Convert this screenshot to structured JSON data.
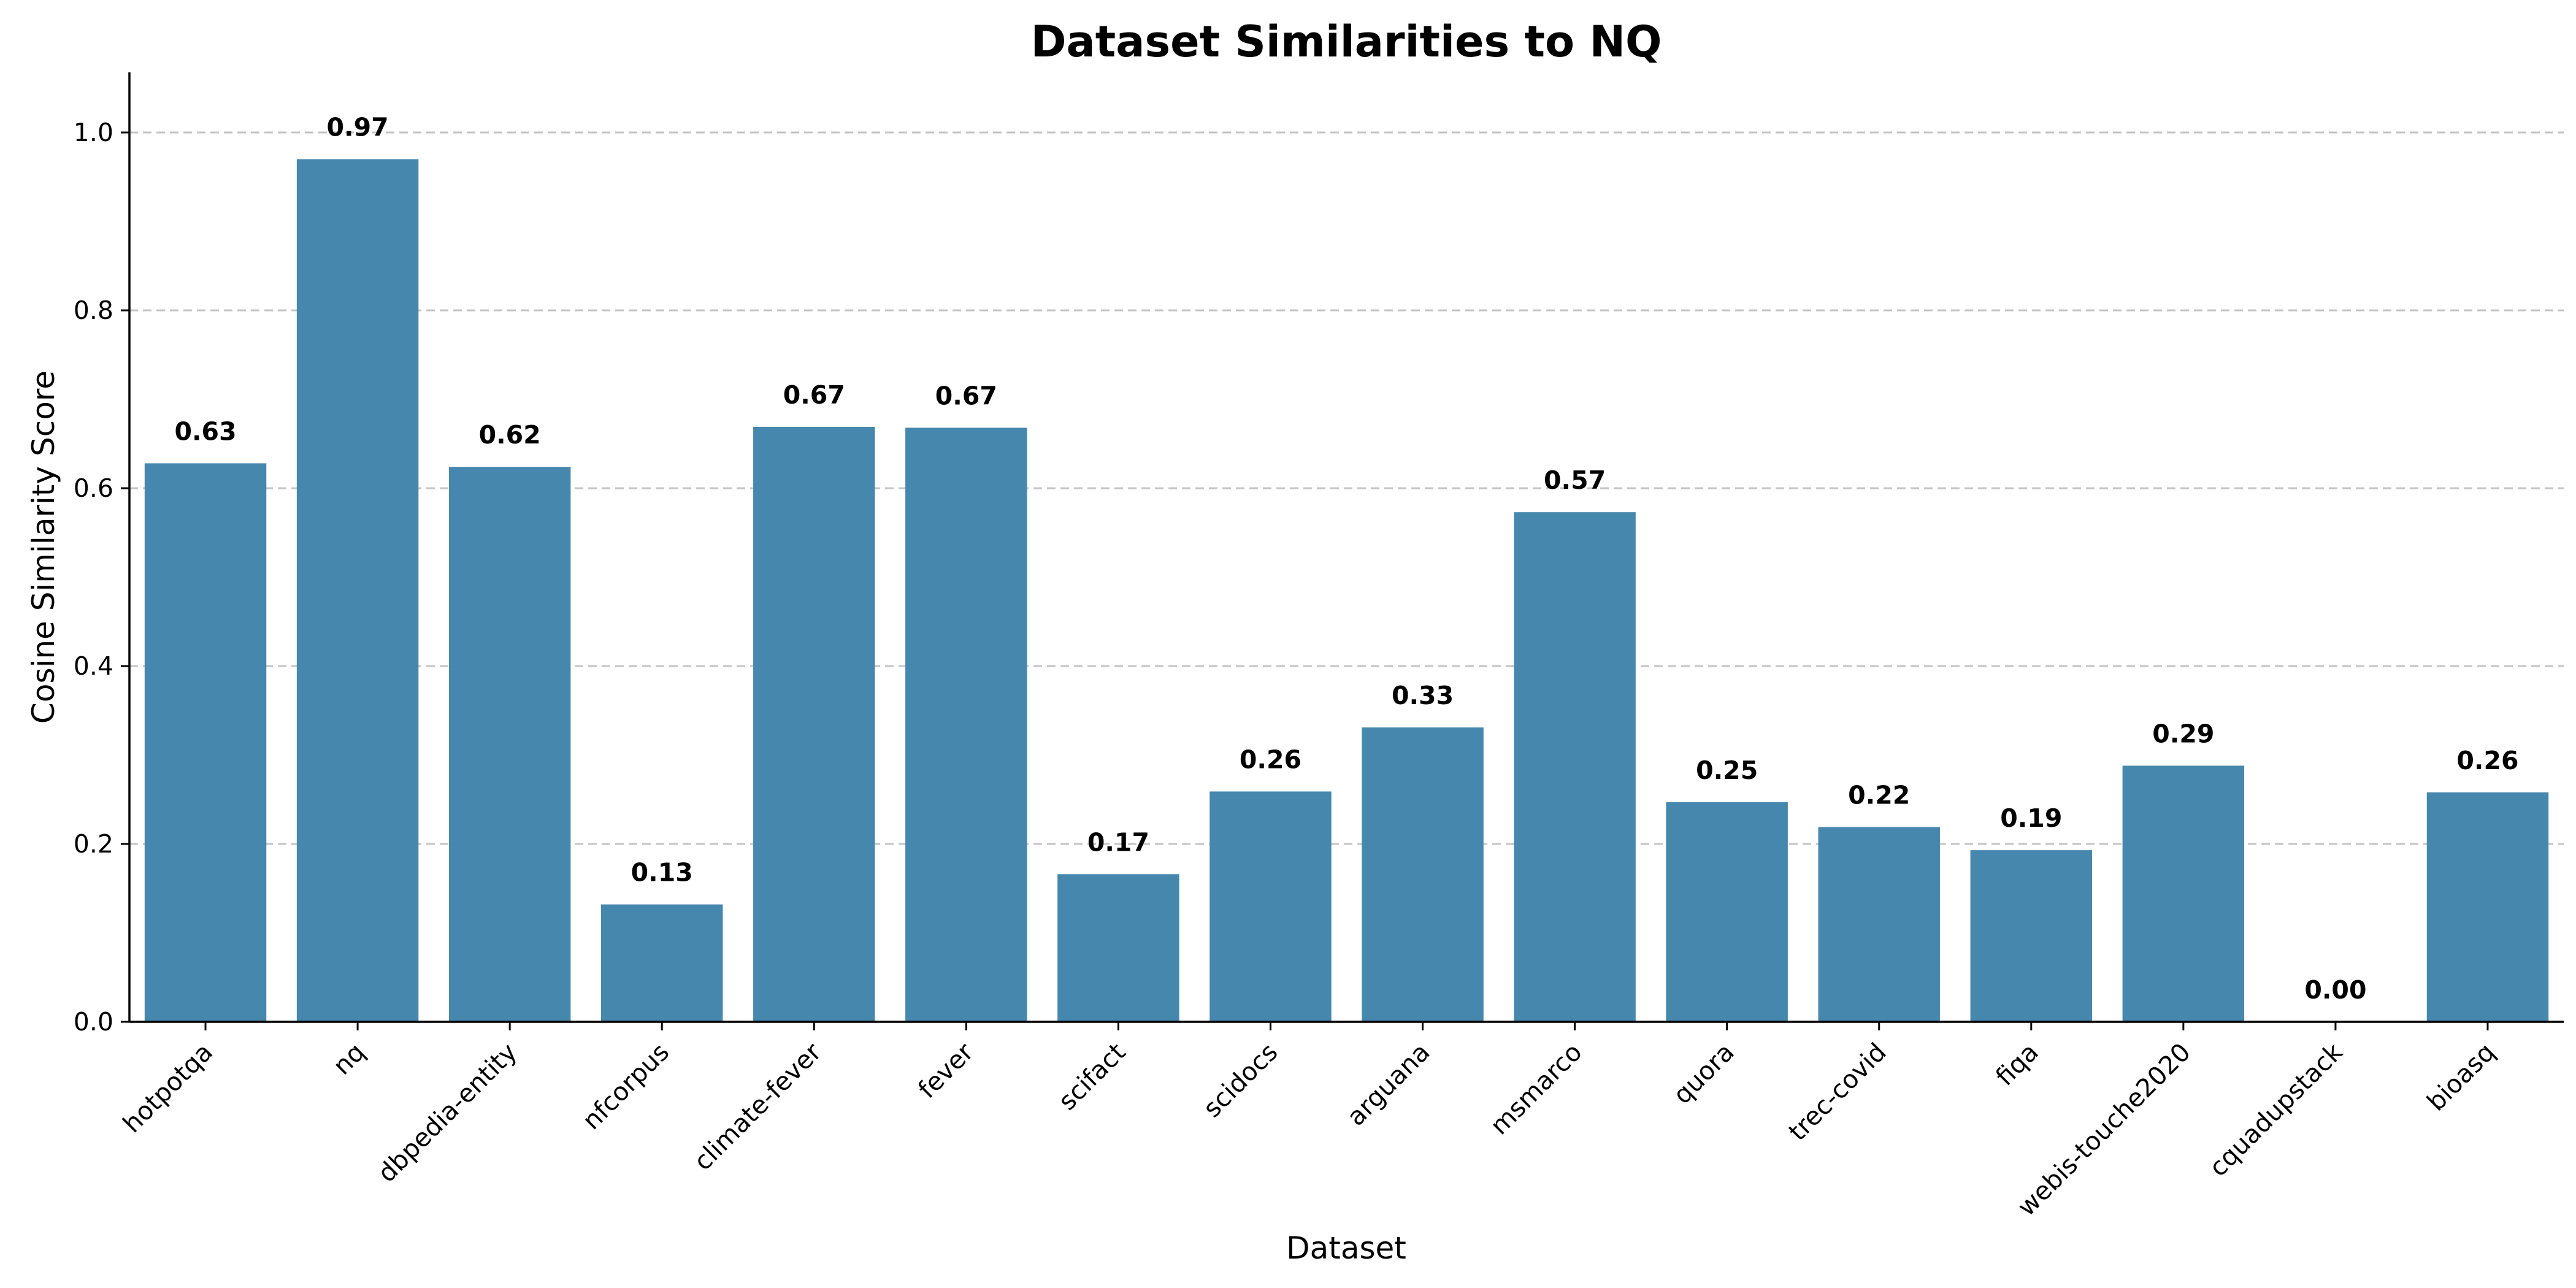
{
  "chart_data": {
    "type": "bar",
    "title": "Dataset Similarities to NQ",
    "xlabel": "Dataset",
    "ylabel": "Cosine Similarity Score",
    "categories": [
      "hotpotqa",
      "nq",
      "dbpedia-entity",
      "nfcorpus",
      "climate-fever",
      "fever",
      "scifact",
      "scidocs",
      "arguana",
      "msmarco",
      "quora",
      "trec-covid",
      "fiqa",
      "webis-touche2020",
      "cquadupstack",
      "bioasq"
    ],
    "values": [
      0.628,
      0.97,
      0.624,
      0.132,
      0.669,
      0.668,
      0.166,
      0.259,
      0.331,
      0.573,
      0.247,
      0.219,
      0.193,
      0.288,
      0.0,
      0.258
    ],
    "value_labels": [
      "0.63",
      "0.97",
      "0.62",
      "0.13",
      "0.67",
      "0.67",
      "0.17",
      "0.26",
      "0.33",
      "0.57",
      "0.25",
      "0.22",
      "0.19",
      "0.29",
      "0.00",
      "0.26"
    ],
    "yticks": [
      0.0,
      0.2,
      0.4,
      0.6,
      0.8,
      1.0
    ],
    "ytick_labels": [
      "0.0",
      "0.2",
      "0.4",
      "0.6",
      "0.8",
      "1.0"
    ],
    "ylim": [
      0,
      1.067
    ],
    "grid": "horizontal dashed",
    "legend": "none",
    "bar_color": "#4687ad"
  }
}
